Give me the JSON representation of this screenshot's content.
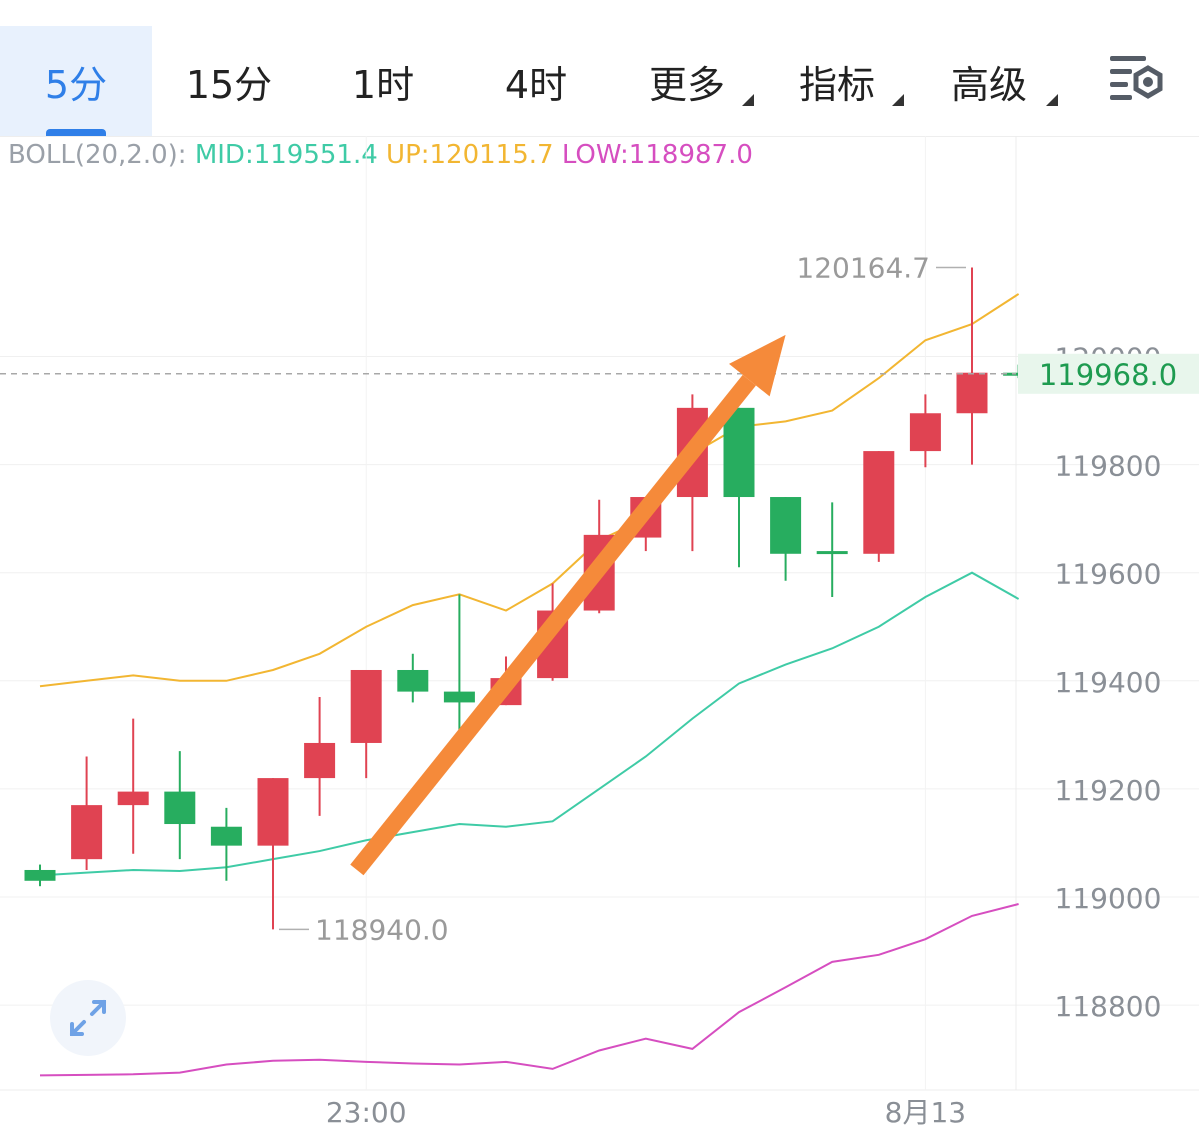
{
  "toolbar": {
    "tabs": [
      {
        "label": "5分",
        "active": true,
        "dropdown": false
      },
      {
        "label": "15分",
        "active": false,
        "dropdown": false
      },
      {
        "label": "1时",
        "active": false,
        "dropdown": false
      },
      {
        "label": "4时",
        "active": false,
        "dropdown": false
      },
      {
        "label": "更多",
        "active": false,
        "dropdown": true
      },
      {
        "label": "指标",
        "active": false,
        "dropdown": true
      },
      {
        "label": "高级",
        "active": false,
        "dropdown": true
      }
    ],
    "settings_icon": "chart-settings-icon"
  },
  "indicator": {
    "name": "BOLL(20,2.0):",
    "mid": "MID:119551.4",
    "up": "UP:120115.7",
    "low": "LOW:118987.0"
  },
  "expand_icon": "expand-icon",
  "colors": {
    "accent": "#2f7fe8",
    "up_candle": "#e04352",
    "down_candle": "#27ad5f",
    "mid_line": "#3fcba6",
    "upper_line": "#f2b632",
    "lower_line": "#d64ec0",
    "arrow": "#f58a3a",
    "price_tag_bg": "#e8f6ec",
    "price_tag_text": "#1e9b50"
  },
  "chart_data": {
    "type": "candlestick",
    "indicator": "BOLL(20,2.0)",
    "y_ticks": [
      120000,
      119800,
      119600,
      119400,
      119200,
      119000,
      118800
    ],
    "ylim": [
      118660,
      120330
    ],
    "x_ticks": [
      {
        "label": "23:00",
        "index": 7
      },
      {
        "label": "8月13",
        "index": 19
      }
    ],
    "current_price": "119968.0",
    "max_label": "120164.7",
    "min_label": "118940.0",
    "candles": [
      {
        "open": 119050,
        "high": 119060,
        "low": 119020,
        "close": 119030
      },
      {
        "open": 119070,
        "high": 119260,
        "low": 119050,
        "close": 119170
      },
      {
        "open": 119170,
        "high": 119330,
        "low": 119080,
        "close": 119195
      },
      {
        "open": 119195,
        "high": 119270,
        "low": 119070,
        "close": 119135
      },
      {
        "open": 119130,
        "high": 119165,
        "low": 119030,
        "close": 119095
      },
      {
        "open": 119095,
        "high": 119220,
        "low": 118940,
        "close": 119220
      },
      {
        "open": 119220,
        "high": 119370,
        "low": 119150,
        "close": 119285
      },
      {
        "open": 119285,
        "high": 119420,
        "low": 119220,
        "close": 119420
      },
      {
        "open": 119420,
        "high": 119450,
        "low": 119360,
        "close": 119380
      },
      {
        "open": 119380,
        "high": 119560,
        "low": 119270,
        "close": 119360
      },
      {
        "open": 119355,
        "high": 119445,
        "low": 119355,
        "close": 119405
      },
      {
        "open": 119405,
        "high": 119580,
        "low": 119400,
        "close": 119530
      },
      {
        "open": 119530,
        "high": 119735,
        "low": 119525,
        "close": 119670
      },
      {
        "open": 119665,
        "high": 119740,
        "low": 119640,
        "close": 119740
      },
      {
        "open": 119740,
        "high": 119930,
        "low": 119640,
        "close": 119905
      },
      {
        "open": 119905,
        "high": 119905,
        "low": 119610,
        "close": 119740
      },
      {
        "open": 119740,
        "high": 119740,
        "low": 119585,
        "close": 119635
      },
      {
        "open": 119640,
        "high": 119730,
        "low": 119555,
        "close": 119637
      },
      {
        "open": 119635,
        "high": 119825,
        "low": 119620,
        "close": 119825
      },
      {
        "open": 119825,
        "high": 119930,
        "low": 119795,
        "close": 119895
      },
      {
        "open": 119895,
        "high": 120164.7,
        "low": 119800,
        "close": 119970
      },
      {
        "open": 119970,
        "high": 119985,
        "low": 119960,
        "close": 119965
      }
    ],
    "boll_up": [
      119390,
      119400,
      119410,
      119400,
      119400,
      119420,
      119450,
      119500,
      119540,
      119560,
      119530,
      119580,
      119660,
      119700,
      119820,
      119870,
      119880,
      119900,
      119960,
      120030,
      120060,
      120115.7
    ],
    "boll_mid": [
      119040,
      119045,
      119050,
      119048,
      119055,
      119070,
      119085,
      119105,
      119120,
      119135,
      119130,
      119140,
      119200,
      119260,
      119330,
      119395,
      119430,
      119460,
      119500,
      119555,
      119600,
      119551.4
    ],
    "boll_low": [
      118670,
      118671,
      118672,
      118675,
      118690,
      118697,
      118699,
      118695,
      118692,
      118690,
      118695,
      118682,
      118716,
      118738,
      118719,
      118787,
      118833,
      118880,
      118893,
      118922,
      118965,
      118987.0
    ],
    "annotation": {
      "type": "arrow",
      "from": {
        "index": 6.8,
        "value": 119050
      },
      "to": {
        "index": 16.0,
        "value": 120040
      }
    }
  }
}
